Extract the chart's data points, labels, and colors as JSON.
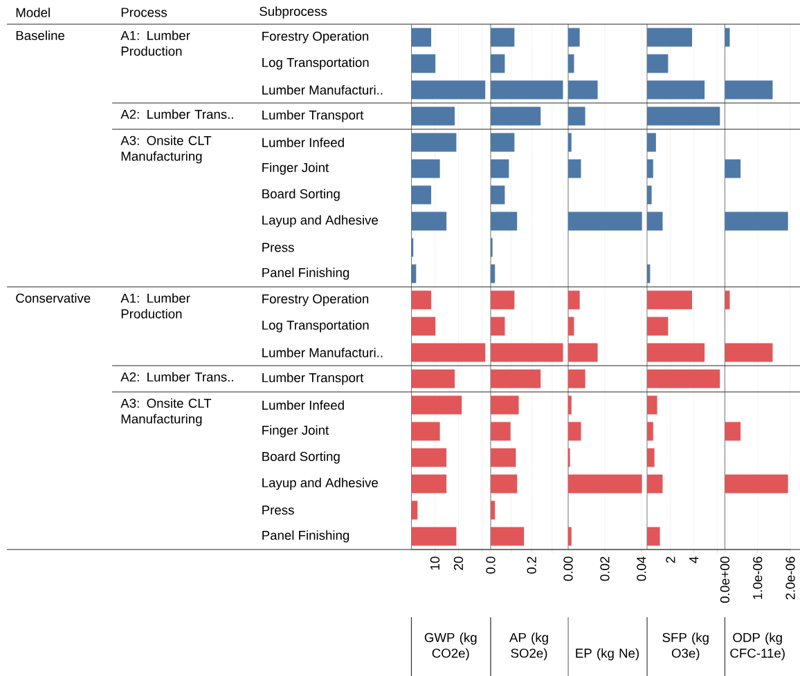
{
  "chart_data": [
    {
      "type": "bar",
      "orientation": "horizontal",
      "grid": "x",
      "xlabel": "GWP (kg CO2e)",
      "categories": [
        "Forestry Operation",
        "Log Transportation",
        "Lumber Manufacturi..",
        "Lumber Transport",
        "Lumber Infeed",
        "Finger Joint",
        "Board Sorting",
        "Layup and Adhesive",
        "Press",
        "Panel Finishing",
        "Forestry Operation",
        "Log Transportation",
        "Lumber Manufacturi..",
        "Lumber Transport",
        "Lumber Infeed",
        "Finger Joint",
        "Board Sorting",
        "Layup and Adhesive",
        "Press",
        "Panel Finishing"
      ],
      "values": [
        8.4,
        10.2,
        31.4,
        18.4,
        19.1,
        12.1,
        8.4,
        14.9,
        0.8,
        2.0,
        8.4,
        10.2,
        31.4,
        18.4,
        21.4,
        12.1,
        14.9,
        14.9,
        2.6,
        19.1
      ],
      "colors": [
        "#4e79a7",
        "#4e79a7",
        "#4e79a7",
        "#4e79a7",
        "#4e79a7",
        "#4e79a7",
        "#4e79a7",
        "#4e79a7",
        "#4e79a7",
        "#4e79a7",
        "#e15759",
        "#e15759",
        "#e15759",
        "#e15759",
        "#e15759",
        "#e15759",
        "#e15759",
        "#e15759",
        "#e15759",
        "#e15759"
      ],
      "xlim": [
        0,
        33.4
      ],
      "xticks": [
        10,
        20,
        {
          "value": 30,
          "label": null
        }
      ],
      "annotations": [
        "Model",
        "Process",
        "Subprocess",
        "Baseline",
        "A1: Lumber Production",
        "A2: Lumber Trans..",
        "A3: Onsite CLT Manufacturing",
        "Conservative",
        "A1: Lumber Production",
        "A2: Lumber Trans..",
        "A3: Onsite CLT Manufacturing"
      ]
    },
    {
      "type": "bar",
      "orientation": "horizontal",
      "grid": "x",
      "xlabel": "AP (kg SO2e)",
      "tick_labels": "x",
      "categories": [
        null,
        null,
        null,
        null,
        null,
        null,
        null,
        null,
        null,
        null,
        null,
        null,
        null,
        null,
        null,
        null,
        null,
        null,
        null,
        null
      ],
      "values": [
        0.116,
        0.069,
        0.353,
        0.244,
        0.116,
        0.089,
        0.069,
        0.129,
        0.009,
        0.021,
        0.116,
        0.069,
        0.353,
        0.244,
        0.137,
        0.097,
        0.123,
        0.129,
        0.021,
        0.163
      ],
      "colors": [
        "#4e79a7",
        "#4e79a7",
        "#4e79a7",
        "#4e79a7",
        "#4e79a7",
        "#4e79a7",
        "#4e79a7",
        "#4e79a7",
        "#4e79a7",
        "#4e79a7",
        "#e15759",
        "#e15759",
        "#e15759",
        "#e15759",
        "#e15759",
        "#e15759",
        "#e15759",
        "#e15759",
        "#e15759",
        "#e15759"
      ],
      "xlim": [
        0,
        0.375
      ],
      "xticks": [
        {
          "value": 0,
          "label": "0.0"
        },
        {
          "value": 0.1,
          "label": null
        },
        0.2,
        {
          "value": 0.3,
          "label": null
        }
      ]
    },
    {
      "type": "bar",
      "orientation": "horizontal",
      "grid": "x",
      "xlabel": "EP (kg Ne)",
      "tick_labels": "x",
      "categories": [
        null,
        null,
        null,
        null,
        null,
        null,
        null,
        null,
        null,
        null,
        null,
        null,
        null,
        null,
        null,
        null,
        null,
        null,
        null,
        null
      ],
      "values": [
        0.0063,
        0.0032,
        0.0161,
        0.0093,
        0.0018,
        0.007,
        null,
        0.0403,
        null,
        null,
        0.0063,
        0.0032,
        0.0161,
        0.0093,
        0.0018,
        0.007,
        0.001,
        0.0403,
        null,
        0.0018
      ],
      "colors": [
        "#4e79a7",
        "#4e79a7",
        "#4e79a7",
        "#4e79a7",
        "#4e79a7",
        "#4e79a7",
        "#4e79a7",
        "#4e79a7",
        "#4e79a7",
        "#4e79a7",
        "#e15759",
        "#e15759",
        "#e15759",
        "#e15759",
        "#e15759",
        "#e15759",
        "#e15759",
        "#e15759",
        "#e15759",
        "#e15759"
      ],
      "xlim": [
        0,
        0.0427
      ],
      "xticks": [
        {
          "value": 0,
          "label": "0.00"
        },
        0.02,
        0.04
      ]
    },
    {
      "type": "bar",
      "orientation": "horizontal",
      "grid": "x",
      "xlabel": "SFP (kg O3e)",
      "tick_labels": "x",
      "categories": [
        null,
        null,
        null,
        null,
        null,
        null,
        null,
        null,
        null,
        null,
        null,
        null,
        null,
        null,
        null,
        null,
        null,
        null,
        null,
        null
      ],
      "values": [
        3.85,
        1.8,
        4.92,
        6.23,
        0.76,
        0.52,
        0.39,
        1.33,
        null,
        0.26,
        3.85,
        1.8,
        4.92,
        6.23,
        0.86,
        0.52,
        0.63,
        1.33,
        null,
        1.1
      ],
      "colors": [
        "#4e79a7",
        "#4e79a7",
        "#4e79a7",
        "#4e79a7",
        "#4e79a7",
        "#4e79a7",
        "#4e79a7",
        "#4e79a7",
        "#4e79a7",
        "#4e79a7",
        "#e15759",
        "#e15759",
        "#e15759",
        "#e15759",
        "#e15759",
        "#e15759",
        "#e15759",
        "#e15759",
        "#e15759",
        "#e15759"
      ],
      "xlim": [
        0,
        6.6
      ],
      "xticks": [
        2,
        4,
        {
          "value": 6,
          "label": null
        }
      ]
    },
    {
      "type": "bar",
      "orientation": "horizontal",
      "grid": "x",
      "xlabel": "ODP (kg CFC-11e)",
      "tick_labels": "x",
      "categories": [
        null,
        null,
        null,
        null,
        null,
        null,
        null,
        null,
        null,
        null,
        null,
        null,
        null,
        null,
        null,
        null,
        null,
        null,
        null,
        null
      ],
      "values": [
        1.5e-07,
        null,
        1.46e-06,
        null,
        null,
        4.8e-07,
        null,
        1.93e-06,
        null,
        null,
        1.5e-07,
        null,
        1.46e-06,
        null,
        null,
        4.8e-07,
        null,
        1.93e-06,
        null,
        null
      ],
      "colors": [
        "#4e79a7",
        "#4e79a7",
        "#4e79a7",
        "#4e79a7",
        "#4e79a7",
        "#4e79a7",
        "#4e79a7",
        "#4e79a7",
        "#4e79a7",
        "#4e79a7",
        "#e15759",
        "#e15759",
        "#e15759",
        "#e15759",
        "#e15759",
        "#e15759",
        "#e15759",
        "#e15759",
        "#e15759",
        "#e15759"
      ],
      "xlim": [
        0,
        2e-06
      ],
      "xticks": [
        {
          "value": 0,
          "label": "0.0e+00"
        },
        {
          "value": 1e-06,
          "label": "1.0e-06"
        },
        {
          "value": 2e-06,
          "label": "2.0e-06"
        }
      ]
    }
  ]
}
